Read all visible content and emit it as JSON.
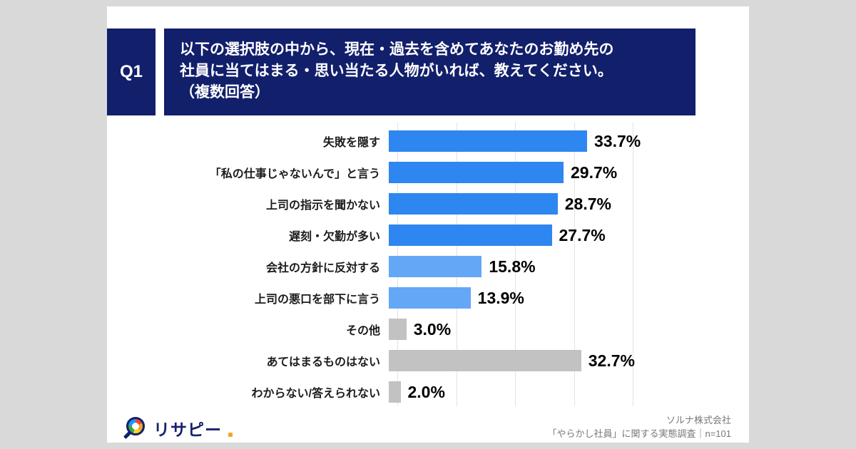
{
  "question": {
    "badge": "Q1",
    "lines": [
      "以下の選択肢の中から、現在・過去を含めてあなたのお勤め先の",
      "社員に当てはまる・思い当たる人物がいれば、教えてください。",
      "（複数回答）"
    ]
  },
  "chart_data": {
    "type": "bar",
    "orientation": "horizontal",
    "title": "",
    "xlabel": "",
    "ylabel": "",
    "categories": [
      "失敗を隠す",
      "「私の仕事じゃないんで」と言う",
      "上司の指示を聞かない",
      "遅刻・欠勤が多い",
      "会社の方針に反対する",
      "上司の悪口を部下に言う",
      "その他",
      "あてはまるものはない",
      "わからない/答えられない"
    ],
    "values": [
      33.7,
      29.7,
      28.7,
      27.7,
      15.8,
      13.9,
      3.0,
      32.7,
      2.0
    ],
    "value_labels": [
      "33.7%",
      "29.7%",
      "28.7%",
      "27.7%",
      "15.8%",
      "13.9%",
      "3.0%",
      "32.7%",
      "2.0%"
    ],
    "bar_colors": [
      "#2E86F0",
      "#2E86F0",
      "#2E86F0",
      "#2E86F0",
      "#64A7F6",
      "#64A7F6",
      "#C2C2C2",
      "#C2C2C2",
      "#C2C2C2"
    ],
    "xlim": [
      0,
      40
    ],
    "gridlines": [
      0,
      10,
      20,
      30,
      40
    ],
    "grid": "vertical",
    "legend": "none"
  },
  "footer": {
    "logo_text": "リサピー",
    "source_line1": "ソルナ株式会社",
    "source_line2": "「やらかし社員」に関する実態調査｜n=101"
  },
  "colors": {
    "navy": "#121F6B",
    "bar_blue": "#2E86F0",
    "bar_light_blue": "#64A7F6",
    "bar_gray": "#C2C2C2",
    "accent_orange": "#F5A623",
    "page_background": "#D9D9D9"
  }
}
